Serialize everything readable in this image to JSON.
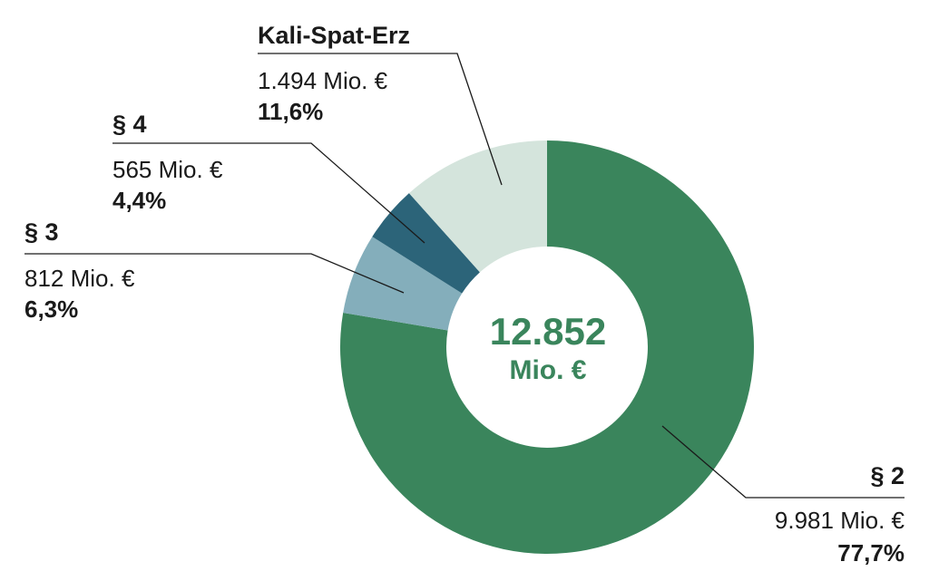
{
  "chart_data": {
    "type": "pie",
    "total": {
      "value": "12.852",
      "unit": "Mio. €"
    },
    "segments": [
      {
        "key": "s2",
        "name": "§ 2",
        "value": 9981,
        "value_label": "9.981 Mio. €",
        "percent": 77.7,
        "percent_label": "77,7%",
        "color": "#3a855c"
      },
      {
        "key": "s3",
        "name": "§ 3",
        "value": 812,
        "value_label": "812 Mio. €",
        "percent": 6.3,
        "percent_label": "6,3%",
        "color": "#84aebb"
      },
      {
        "key": "s4",
        "name": "§ 4",
        "value": 565,
        "value_label": "565 Mio. €",
        "percent": 4.4,
        "percent_label": "4,4%",
        "color": "#2c6479"
      },
      {
        "key": "kali",
        "name": "Kali-Spat-Erz",
        "value": 1494,
        "value_label": "1.494 Mio. €",
        "percent": 11.6,
        "percent_label": "11,6%",
        "color": "#d4e4dc"
      }
    ],
    "legend": "callouts"
  }
}
